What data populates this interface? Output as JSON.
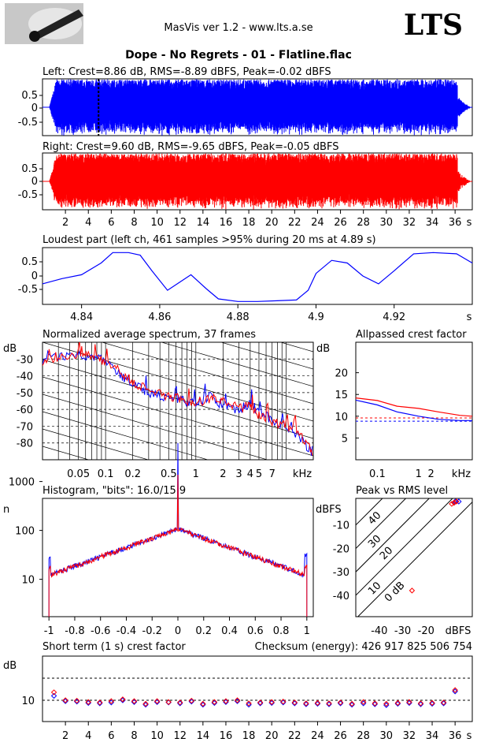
{
  "app": {
    "title": "MasVis ver 1.2 - www.lts.a.se",
    "logo": "LTS"
  },
  "file": {
    "title": "Dope - No Regrets - 01 - Flatline.flac"
  },
  "panels": {
    "left_title": "Left: Crest=8.86 dB, RMS=-8.89 dBFS, Peak=-0.02 dBFS",
    "right_title": "Right: Crest=9.60 dB, RMS=-9.65 dBFS, Peak=-0.05 dBFS",
    "loudest_title": "Loudest part (left  ch, 461 samples >95% during 20 ms at 4.89 s)",
    "spectrum_title": "Normalized average spectrum, 37 frames",
    "allpass_title": "Allpassed crest factor",
    "histogram_title": "Histogram, \"bits\": 16.0/15.9",
    "pvr_title": "Peak vs RMS level",
    "crest_title": "Short term (1 s) crest factor",
    "checksum": "Checksum (energy):   426 917 825 506 754"
  },
  "colors": {
    "left": "#0000ff",
    "right": "#ff0000",
    "grid": "#000000",
    "dashed": "#000000"
  },
  "chart_data": [
    {
      "id": "left_wave",
      "type": "area",
      "series": [
        {
          "name": "Left",
          "color": "#0000ff"
        }
      ],
      "yticks": [
        "0.5",
        "0",
        "-0.5"
      ],
      "ylim": [
        -1,
        1
      ],
      "xlim": [
        0,
        37.5
      ],
      "marker_x": 4.89
    },
    {
      "id": "right_wave",
      "type": "area",
      "series": [
        {
          "name": "Right",
          "color": "#ff0000"
        }
      ],
      "yticks": [
        "0.5",
        "0",
        "-0.5"
      ],
      "ylim": [
        -1,
        1
      ],
      "xlim": [
        0,
        37.5
      ],
      "xticks": [
        "2",
        "4",
        "6",
        "8",
        "10",
        "12",
        "14",
        "16",
        "18",
        "20",
        "22",
        "24",
        "26",
        "28",
        "30",
        "32",
        "34",
        "36",
        "s"
      ]
    },
    {
      "id": "loudest",
      "type": "line",
      "yticks": [
        "0.5",
        "0",
        "-0.5"
      ],
      "ylim": [
        -1,
        1
      ],
      "xticks": [
        "4.84",
        "4.86",
        "4.88",
        "4.9",
        "4.92",
        "s"
      ],
      "x": [
        4.83,
        4.835,
        4.84,
        4.845,
        4.848,
        4.852,
        4.855,
        4.858,
        4.862,
        4.865,
        4.868,
        4.872,
        4.875,
        4.88,
        4.885,
        4.89,
        4.895,
        4.898,
        4.9,
        4.904,
        4.908,
        4.912,
        4.916,
        4.92,
        4.925,
        4.93,
        4.936,
        4.94
      ],
      "values": [
        -0.3,
        -0.1,
        0.05,
        0.5,
        0.9,
        0.9,
        0.8,
        0.2,
        -0.55,
        -0.25,
        0.05,
        -0.5,
        -0.88,
        -0.98,
        -0.98,
        -0.95,
        -0.92,
        -0.55,
        0.1,
        0.6,
        0.5,
        0.0,
        -0.3,
        0.2,
        0.85,
        0.9,
        0.85,
        0.5
      ]
    },
    {
      "id": "spectrum",
      "type": "line",
      "ylabel": "dB",
      "yticks": [
        "-30",
        "-40",
        "-50",
        "-60",
        "-70",
        "-80"
      ],
      "ylim": [
        -90,
        -20
      ],
      "xticks": [
        "0.05",
        "0.1",
        "0.2",
        "0.5",
        "1",
        "2",
        "3",
        "4",
        "5",
        "7",
        "kHz"
      ],
      "xlim": [
        0.02,
        20
      ],
      "series": [
        {
          "name": "Left",
          "x": [
            0.02,
            0.03,
            0.05,
            0.07,
            0.1,
            0.15,
            0.2,
            0.3,
            0.5,
            0.7,
            1,
            1.5,
            2,
            3,
            4,
            5,
            7,
            10,
            15,
            20
          ],
          "values": [
            -30,
            -29,
            -27,
            -28,
            -32,
            -40,
            -45,
            -50,
            -53,
            -55,
            -57,
            -52,
            -58,
            -60,
            -56,
            -62,
            -66,
            -70,
            -78,
            -87
          ]
        },
        {
          "name": "Right",
          "x": [
            0.02,
            0.03,
            0.05,
            0.07,
            0.1,
            0.15,
            0.2,
            0.3,
            0.5,
            0.7,
            1,
            1.5,
            2,
            3,
            4,
            5,
            7,
            10,
            15,
            20
          ],
          "values": [
            -31,
            -30,
            -28,
            -27,
            -33,
            -38,
            -44,
            -48,
            -52,
            -54,
            -56,
            -53,
            -55,
            -59,
            -58,
            -63,
            -68,
            -69,
            -76,
            -86
          ]
        }
      ]
    },
    {
      "id": "allpass",
      "type": "line",
      "ylabel": "dB",
      "yticks": [
        "20",
        "15",
        "10",
        "5"
      ],
      "ylim": [
        0,
        27
      ],
      "xticks": [
        "0.1",
        "1",
        "2",
        "kHz"
      ],
      "xlim": [
        0.03,
        20
      ],
      "series": [
        {
          "name": "Left",
          "x": [
            0.03,
            0.1,
            0.3,
            1,
            3,
            10,
            20
          ],
          "values": [
            13.7,
            12.6,
            11.0,
            10.0,
            9.3,
            9.0,
            9.0
          ]
        },
        {
          "name": "Right",
          "x": [
            0.03,
            0.1,
            0.3,
            1,
            3,
            10,
            20
          ],
          "values": [
            14.2,
            13.6,
            12.3,
            11.8,
            11.0,
            10.2,
            10.0
          ]
        }
      ],
      "reference_lines": [
        8.86,
        9.6
      ]
    },
    {
      "id": "histogram",
      "type": "line",
      "ylabel": "n",
      "yticks": [
        "1000",
        "100",
        "10"
      ],
      "xticks": [
        "-1",
        "-0.8",
        "-0.6",
        "-0.4",
        "-0.2",
        "0",
        "0.2",
        "0.4",
        "0.6",
        "0.8",
        "1"
      ],
      "xlim": [
        -1.05,
        1.05
      ],
      "x": [
        -1,
        -0.95,
        -0.8,
        -0.6,
        -0.4,
        -0.2,
        -0.05,
        0,
        0.05,
        0.2,
        0.4,
        0.6,
        0.8,
        0.95,
        1
      ],
      "series": [
        {
          "name": "Left",
          "values": [
            30,
            15,
            15,
            20,
            30,
            55,
            100,
            5000,
            100,
            55,
            30,
            20,
            15,
            15,
            30
          ]
        },
        {
          "name": "Right",
          "values": [
            20,
            15,
            15,
            20,
            30,
            55,
            100,
            1500,
            100,
            55,
            30,
            20,
            15,
            15,
            20
          ]
        }
      ]
    },
    {
      "id": "peak_vs_rms",
      "type": "scatter",
      "ylabel": "dBFS",
      "xlabel": "dBFS",
      "yticks": [
        "-10",
        "-20",
        "-30",
        "-40"
      ],
      "xticks": [
        "-40",
        "-30",
        "-20"
      ],
      "xlim": [
        -50,
        0
      ],
      "ylim": [
        -50,
        0
      ],
      "diagonal_labels": [
        "40",
        "30",
        "20",
        "10",
        "0 dB"
      ],
      "series": [
        {
          "name": "Left",
          "x": [
            -8,
            -7.5,
            -6
          ],
          "y": [
            -0.5,
            0,
            0
          ]
        },
        {
          "name": "Right",
          "x": [
            -26,
            -9,
            -8,
            -7
          ],
          "y": [
            -38,
            -1,
            -0.5,
            0
          ]
        }
      ]
    },
    {
      "id": "crest",
      "type": "scatter",
      "ylabel": "dB",
      "yticks": [
        "10"
      ],
      "ylim": [
        5,
        25
      ],
      "xticks": [
        "2",
        "4",
        "6",
        "8",
        "10",
        "12",
        "14",
        "16",
        "18",
        "20",
        "22",
        "24",
        "26",
        "28",
        "30",
        "32",
        "34",
        "36",
        "s"
      ],
      "xlim": [
        0,
        37.5
      ],
      "series": [
        {
          "name": "Left",
          "x": [
            1,
            2,
            3,
            4,
            5,
            6,
            7,
            8,
            9,
            10,
            11,
            12,
            13,
            14,
            15,
            16,
            17,
            18,
            19,
            20,
            21,
            22,
            23,
            24,
            25,
            26,
            27,
            28,
            29,
            30,
            31,
            32,
            33,
            34,
            35,
            36
          ],
          "values": [
            11,
            9.8,
            9.7,
            9.4,
            9.3,
            9.5,
            10,
            9.6,
            9.0,
            9.6,
            9.5,
            9.3,
            9.7,
            9.0,
            9.4,
            9.6,
            9.8,
            9.0,
            9.3,
            9.4,
            9.5,
            9.3,
            9.1,
            9.2,
            9.1,
            9.3,
            9.0,
            9.3,
            9.1,
            8.9,
            9.2,
            9.4,
            9.1,
            9.2,
            9.3,
            12
          ]
        },
        {
          "name": "Right",
          "x": [
            1,
            2,
            3,
            4,
            5,
            6,
            7,
            8,
            9,
            10,
            11,
            12,
            13,
            14,
            15,
            16,
            17,
            18,
            19,
            20,
            21,
            22,
            23,
            24,
            25,
            26,
            27,
            28,
            29,
            30,
            31,
            32,
            33,
            34,
            35,
            36
          ],
          "values": [
            11.8,
            10,
            9.9,
            9.6,
            9.5,
            9.8,
            10.2,
            9.8,
            9.2,
            9.8,
            9.6,
            9.5,
            9.9,
            9.2,
            9.6,
            9.8,
            10,
            9.3,
            9.5,
            9.6,
            9.7,
            9.5,
            9.3,
            9.4,
            9.3,
            9.5,
            9.2,
            9.6,
            9.3,
            9.2,
            9.4,
            9.6,
            9.3,
            9.4,
            9.5,
            12.3
          ]
        }
      ],
      "reference_lines": [
        10,
        15
      ]
    }
  ]
}
